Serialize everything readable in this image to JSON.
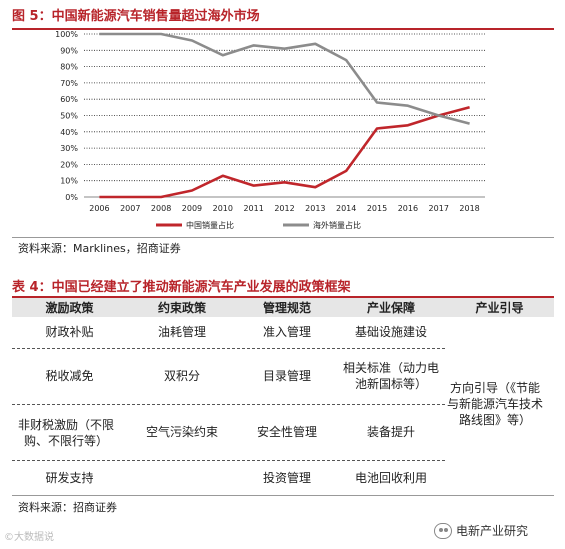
{
  "figure": {
    "title": "图 5：中国新能源汽车销售量超过海外市场",
    "source": "资料来源：Marklines，招商证券"
  },
  "chart_data": {
    "type": "line",
    "title": "图 5：中国新能源汽车销售量超过海外市场",
    "x": [
      "2006",
      "2007",
      "2008",
      "2009",
      "2010",
      "2011",
      "2012",
      "2013",
      "2014",
      "2015",
      "2016",
      "2017",
      "2018"
    ],
    "y_ticks": [
      "0%",
      "10%",
      "20%",
      "30%",
      "40%",
      "50%",
      "60%",
      "70%",
      "80%",
      "90%",
      "100%"
    ],
    "ylim": [
      0,
      100
    ],
    "grid": true,
    "legend_position": "bottom",
    "series": [
      {
        "name": "中国销量占比",
        "color": "#c0262b",
        "values": [
          0,
          0,
          0,
          4,
          13,
          7,
          9,
          6,
          16,
          42,
          44,
          50,
          55
        ]
      },
      {
        "name": "海外销量占比",
        "color": "#8c8c8c",
        "values": [
          100,
          100,
          100,
          96,
          87,
          93,
          91,
          94,
          84,
          58,
          56,
          50,
          45
        ]
      }
    ]
  },
  "table": {
    "title": "表 4：中国已经建立了推动新能源汽车产业发展的政策框架",
    "headers": [
      "激励政策",
      "约束政策",
      "管理规范",
      "产业保障",
      "产业引导"
    ],
    "rows": [
      [
        "财政补贴",
        "油耗管理",
        "准入管理",
        "基础设施建设",
        ""
      ],
      [
        "税收减免",
        "双积分",
        "目录管理",
        "相关标准（动力电池新国标等）",
        "方向引导（《节能与新能源汽车技术路线图》等）"
      ],
      [
        "非财税激励（不限购、不限行等）",
        "空气污染约束",
        "安全性管理",
        "装备提升",
        ""
      ],
      [
        "研发支持",
        "",
        "投资管理",
        "电池回收利用",
        ""
      ]
    ],
    "source": "资料来源：招商证券"
  },
  "watermarks": {
    "left": "©大数据说",
    "right": "电新产业研究"
  }
}
